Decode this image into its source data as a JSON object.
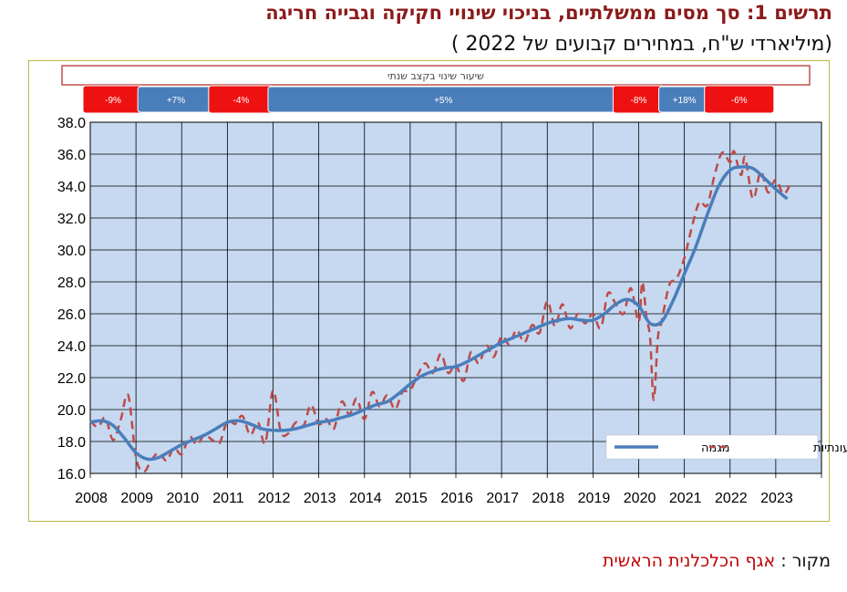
{
  "header": {
    "title": "תרשים 1: סך מסים ממשלתיים, בניכוי שינויי חקיקה וגבייה חריגה",
    "subtitle": "(מיליארדי ש\"ח, במחירים קבועים של 2022 )"
  },
  "source": {
    "label": "מקור :",
    "name": "אגף הכלכלנית הראשית"
  },
  "colors": {
    "trend": "#4a7ebb",
    "seasonal": "#be4b48",
    "plot_bg": "#c6d9f1",
    "negative_box": "#ee1111",
    "positive_box": "#4a7ebb",
    "title": "#8b1a1a"
  },
  "chart_data": {
    "type": "line",
    "title": "",
    "xlabel": "",
    "ylabel": "",
    "xlim": [
      2008,
      2024
    ],
    "ylim": [
      16.0,
      38.0
    ],
    "y_ticks": [
      16.0,
      18.0,
      20.0,
      22.0,
      24.0,
      26.0,
      28.0,
      30.0,
      32.0,
      34.0,
      36.0,
      38.0
    ],
    "x_ticks": [
      2008,
      2009,
      2010,
      2011,
      2012,
      2013,
      2014,
      2015,
      2016,
      2017,
      2018,
      2019,
      2020,
      2021,
      2022,
      2023
    ],
    "grid": true,
    "legend_position": "bottom-right",
    "annual_change_banner": "שיעור שינוי בקצב שנתי",
    "annual_change_periods": [
      {
        "label": "-9%",
        "from": 2008.0,
        "to": 2009.0,
        "sign": "negative"
      },
      {
        "label": "+7%",
        "from": 2009.0,
        "to": 2010.75,
        "sign": "positive"
      },
      {
        "label": "-4%",
        "from": 2010.75,
        "to": 2011.85,
        "sign": "negative"
      },
      {
        "label": "+5%",
        "from": 2011.85,
        "to": 2019.6,
        "sign": "positive"
      },
      {
        "label": "-8%",
        "from": 2019.6,
        "to": 2020.4,
        "sign": "negative"
      },
      {
        "label": "+18%",
        "from": 2020.4,
        "to": 2021.6,
        "sign": "positive"
      },
      {
        "label": "-6%",
        "from": 2021.6,
        "to": 2022.8,
        "sign": "negative"
      }
    ],
    "series": [
      {
        "name": "מגמה",
        "style": "solid",
        "x": [
          2008.0,
          2008.25,
          2008.5,
          2008.75,
          2009.0,
          2009.25,
          2009.5,
          2009.75,
          2010.0,
          2010.25,
          2010.5,
          2010.75,
          2011.0,
          2011.25,
          2011.5,
          2011.75,
          2012.0,
          2012.25,
          2012.5,
          2012.75,
          2013.0,
          2013.25,
          2013.5,
          2013.75,
          2014.0,
          2014.25,
          2014.5,
          2014.75,
          2015.0,
          2015.25,
          2015.5,
          2015.75,
          2016.0,
          2016.25,
          2016.5,
          2016.75,
          2017.0,
          2017.25,
          2017.5,
          2017.75,
          2018.0,
          2018.25,
          2018.5,
          2018.75,
          2019.0,
          2019.25,
          2019.5,
          2019.75,
          2020.0,
          2020.25,
          2020.5,
          2020.75,
          2021.0,
          2021.25,
          2021.5,
          2021.75,
          2022.0,
          2022.25,
          2022.5,
          2022.75,
          2023.0,
          2023.25
        ],
        "values": [
          19.2,
          19.3,
          19.0,
          18.2,
          17.3,
          16.9,
          17.0,
          17.4,
          17.8,
          18.1,
          18.4,
          18.8,
          19.2,
          19.3,
          19.1,
          18.8,
          18.7,
          18.7,
          18.8,
          19.0,
          19.2,
          19.3,
          19.5,
          19.7,
          20.0,
          20.3,
          20.5,
          21.0,
          21.6,
          22.1,
          22.4,
          22.6,
          22.7,
          23.0,
          23.4,
          23.8,
          24.2,
          24.5,
          24.8,
          25.1,
          25.4,
          25.6,
          25.7,
          25.6,
          25.6,
          26.0,
          26.6,
          26.9,
          26.5,
          25.4,
          25.5,
          26.8,
          28.5,
          30.2,
          32.2,
          34.0,
          35.0,
          35.2,
          35.1,
          34.5,
          33.8,
          33.2
        ]
      },
      {
        "name": "מנוכה עונתיות",
        "style": "dashed",
        "x": [
          2008.0,
          2008.17,
          2008.33,
          2008.5,
          2008.67,
          2008.83,
          2009.0,
          2009.17,
          2009.33,
          2009.5,
          2009.67,
          2009.83,
          2010.0,
          2010.17,
          2010.33,
          2010.5,
          2010.67,
          2010.83,
          2011.0,
          2011.17,
          2011.33,
          2011.5,
          2011.67,
          2011.83,
          2012.0,
          2012.17,
          2012.33,
          2012.5,
          2012.67,
          2012.83,
          2013.0,
          2013.17,
          2013.33,
          2013.5,
          2013.67,
          2013.83,
          2014.0,
          2014.17,
          2014.33,
          2014.5,
          2014.67,
          2014.83,
          2015.0,
          2015.17,
          2015.33,
          2015.5,
          2015.67,
          2015.83,
          2016.0,
          2016.17,
          2016.33,
          2016.5,
          2016.67,
          2016.83,
          2017.0,
          2017.17,
          2017.33,
          2017.5,
          2017.67,
          2017.83,
          2018.0,
          2018.17,
          2018.33,
          2018.5,
          2018.67,
          2018.83,
          2019.0,
          2019.17,
          2019.33,
          2019.5,
          2019.67,
          2019.83,
          2020.0,
          2020.08,
          2020.17,
          2020.25,
          2020.33,
          2020.42,
          2020.5,
          2020.67,
          2020.83,
          2021.0,
          2021.17,
          2021.33,
          2021.5,
          2021.67,
          2021.83,
          2022.0,
          2022.08,
          2022.17,
          2022.25,
          2022.33,
          2022.5,
          2022.67,
          2022.83,
          2023.0,
          2023.17,
          2023.33
        ],
        "values": [
          19.3,
          18.9,
          19.5,
          18.1,
          19.4,
          20.9,
          17.0,
          16.1,
          16.8,
          17.3,
          16.8,
          17.6,
          17.2,
          18.3,
          17.8,
          18.4,
          18.1,
          17.9,
          19.3,
          19.1,
          19.6,
          18.4,
          19.2,
          17.9,
          21.2,
          18.6,
          18.5,
          19.2,
          19.0,
          20.3,
          19.1,
          19.4,
          18.8,
          20.5,
          19.7,
          20.7,
          19.4,
          21.1,
          20.2,
          20.9,
          20.0,
          21.1,
          21.2,
          22.2,
          22.9,
          22.3,
          23.5,
          22.3,
          22.8,
          21.8,
          23.6,
          22.9,
          24.0,
          23.3,
          24.6,
          24.1,
          25.0,
          24.2,
          25.3,
          24.8,
          26.8,
          25.2,
          26.6,
          25.1,
          26.0,
          25.4,
          26.0,
          25.1,
          27.3,
          26.6,
          26.0,
          27.6,
          25.5,
          28.0,
          25.8,
          24.5,
          20.6,
          24.5,
          25.5,
          27.8,
          28.2,
          29.5,
          31.5,
          33.0,
          32.8,
          34.8,
          36.1,
          35.5,
          36.2,
          35.3,
          34.7,
          35.8,
          33.2,
          34.9,
          33.6,
          34.4,
          33.5,
          34.2
        ]
      }
    ]
  }
}
